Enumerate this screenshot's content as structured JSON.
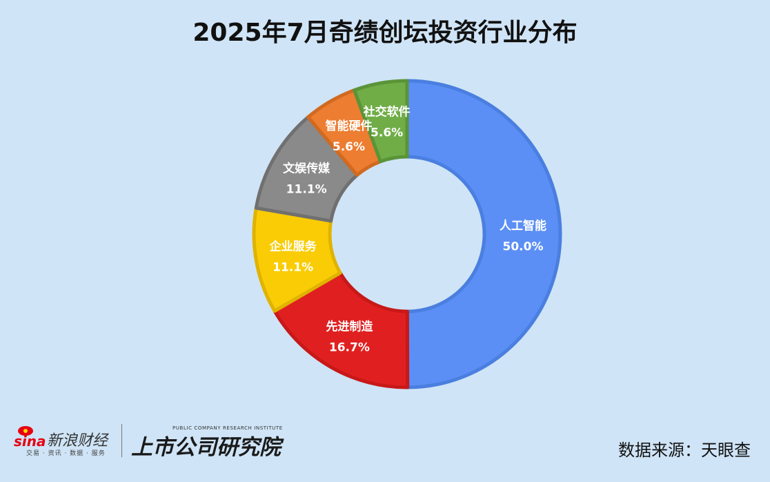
{
  "title": "2025年7月奇绩创坛投资行业分布",
  "source": "数据来源：天眼查",
  "branding": {
    "sina_logo_text": "sina",
    "sina_name": "新浪财经",
    "sina_subtitle": "交易 · 资讯 · 数据 · 服务",
    "institute_en": "PUBLIC COMPANY RESEARCH INSTITUTE",
    "institute_cn": "上市公司研究院"
  },
  "chart_data": {
    "type": "pie",
    "subtype": "donut",
    "title": "2025年7月奇绩创坛投资行业分布",
    "categories": [
      "人工智能",
      "先进制造",
      "企业服务",
      "文娱传媒",
      "智能硬件",
      "社交软件"
    ],
    "values": [
      50.0,
      16.7,
      11.1,
      11.1,
      5.6,
      5.6
    ],
    "labels": [
      "50.0%",
      "16.7%",
      "11.1%",
      "11.1%",
      "5.6%",
      "5.6%"
    ],
    "colors": [
      "#5b8ff5",
      "#e02020",
      "#f9cc06",
      "#8a8a8a",
      "#ed7d31",
      "#70ad47"
    ],
    "stroke_colors": [
      "#4a7fe0",
      "#c81818",
      "#e0b300",
      "#707070",
      "#d06a20",
      "#5a9438"
    ],
    "start": "top, clockwise",
    "legend": "none"
  }
}
